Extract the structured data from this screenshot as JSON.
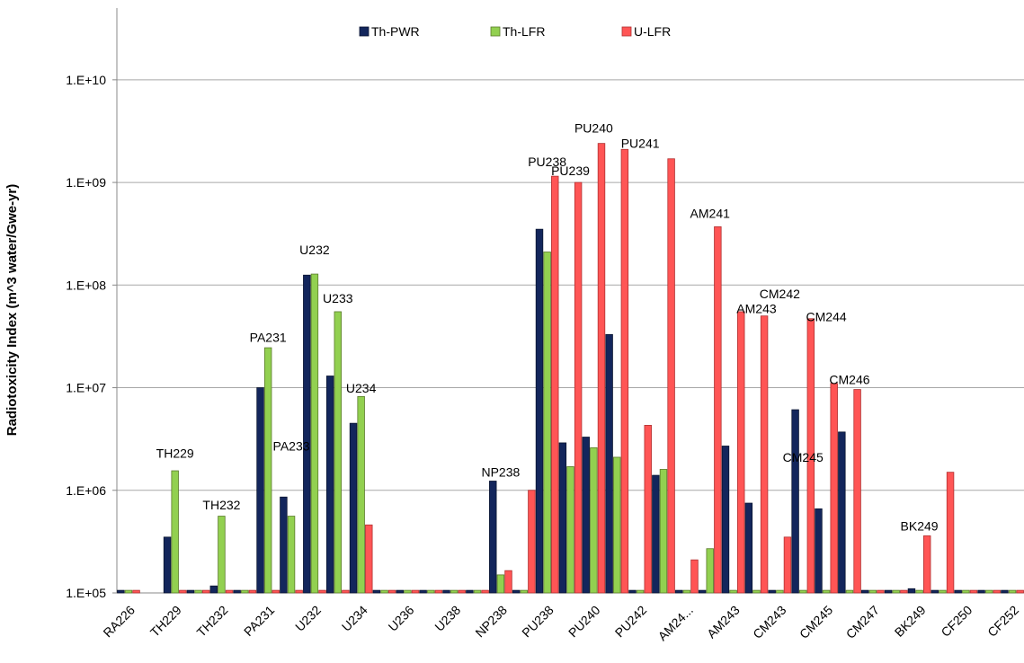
{
  "chart_data": {
    "type": "bar",
    "log_scale": true,
    "grid": true,
    "legend": "top",
    "ylabel": "Radiotoxicity Index (m^3 water/Gwe-yr)",
    "categories": [
      "RA226",
      null,
      "TH229",
      null,
      "TH232",
      null,
      "PA231",
      null,
      "U232",
      null,
      "U234",
      null,
      "U236",
      null,
      "U238",
      null,
      "NP238",
      null,
      "PU238",
      null,
      "PU240",
      null,
      "PU242",
      null,
      "AM24...",
      null,
      "AM243",
      null,
      "CM243",
      null,
      "CM245",
      null,
      "CM247",
      null,
      "BK249",
      null,
      "CF250",
      null,
      "CF252"
    ],
    "series": [
      {
        "name": "Th-PWR",
        "color": "#13265c",
        "values": [
          106000,
          null,
          350000,
          106000,
          117000,
          106000,
          10000000,
          860000,
          125000000,
          13000000,
          4500000,
          106000,
          106000,
          106000,
          106000,
          106000,
          1230000,
          106000,
          350000000,
          2900000,
          3300000,
          33000000,
          106000,
          1400000,
          106000,
          106000,
          2700000,
          750000,
          106000,
          6100000,
          660000,
          3700000,
          106000,
          106000,
          110000,
          106000,
          106000,
          106000,
          106000
        ]
      },
      {
        "name": "Th-LFR",
        "color": "#92d050",
        "values": [
          106000,
          null,
          1550000,
          106000,
          560000,
          106000,
          24500000,
          560000,
          128000000,
          55000000,
          8200000,
          106000,
          106000,
          106000,
          106000,
          106000,
          150000,
          106000,
          210000000,
          1700000,
          2600000,
          2100000,
          106000,
          1600000,
          106000,
          270000,
          106000,
          106000,
          106000,
          106000,
          106000,
          106000,
          106000,
          106000,
          106000,
          106000,
          106000,
          106000,
          106000
        ]
      },
      {
        "name": "U-LFR",
        "color": "#ff5555",
        "values": [
          106000,
          null,
          106000,
          106000,
          106000,
          106000,
          106000,
          106000,
          106000,
          106000,
          460000,
          106000,
          106000,
          106000,
          106000,
          106000,
          165000,
          1000000,
          1150000000,
          1000000000,
          2400000000,
          2100000000,
          4300000,
          1700000000,
          210000,
          370000000,
          55000000,
          50000000,
          350000,
          47000000,
          11000000,
          9600000,
          106000,
          106000,
          360000,
          1500000,
          106000,
          106000,
          106000
        ]
      }
    ],
    "annotations": [
      {
        "text": "TH229",
        "x": 2,
        "y": 2300000
      },
      {
        "text": "TH232",
        "x": 4,
        "y": 720000
      },
      {
        "text": "PA231",
        "x": 6,
        "y": 31000000
      },
      {
        "text": "PA233",
        "x": 7,
        "y": 2700000
      },
      {
        "text": "U232",
        "x": 8,
        "y": 220000000
      },
      {
        "text": "U233",
        "x": 9,
        "y": 74000000
      },
      {
        "text": "U234",
        "x": 10,
        "y": 9900000
      },
      {
        "text": "NP238",
        "x": 16,
        "y": 1500000
      },
      {
        "text": "PU238",
        "x": 18,
        "y": 1600000000
      },
      {
        "text": "PU239",
        "x": 19,
        "y": 1300000000
      },
      {
        "text": "PU240",
        "x": 20,
        "y": 3400000000
      },
      {
        "text": "PU241",
        "x": 22,
        "y": 2400000000
      },
      {
        "text": "AM241",
        "x": 25,
        "y": 500000000
      },
      {
        "text": "AM243",
        "x": 27,
        "y": 59000000
      },
      {
        "text": "CM242",
        "x": 28,
        "y": 82000000
      },
      {
        "text": "CM244",
        "x": 30,
        "y": 49000000
      },
      {
        "text": "CM245",
        "x": 29,
        "y": 2100000
      },
      {
        "text": "CM246",
        "x": 31,
        "y": 12000000
      },
      {
        "text": "BK249",
        "x": 34,
        "y": 450000
      }
    ],
    "ylim": [
      100000,
      50000000000
    ],
    "yticks": [
      {
        "value": 100000,
        "label": "1.E+05"
      },
      {
        "value": 1000000,
        "label": "1.E+06"
      },
      {
        "value": 10000000,
        "label": "1.E+07"
      },
      {
        "value": 100000000,
        "label": "1.E+08"
      },
      {
        "value": 1000000000,
        "label": "1.E+09"
      },
      {
        "value": 10000000000,
        "label": "1.E+10"
      }
    ]
  }
}
